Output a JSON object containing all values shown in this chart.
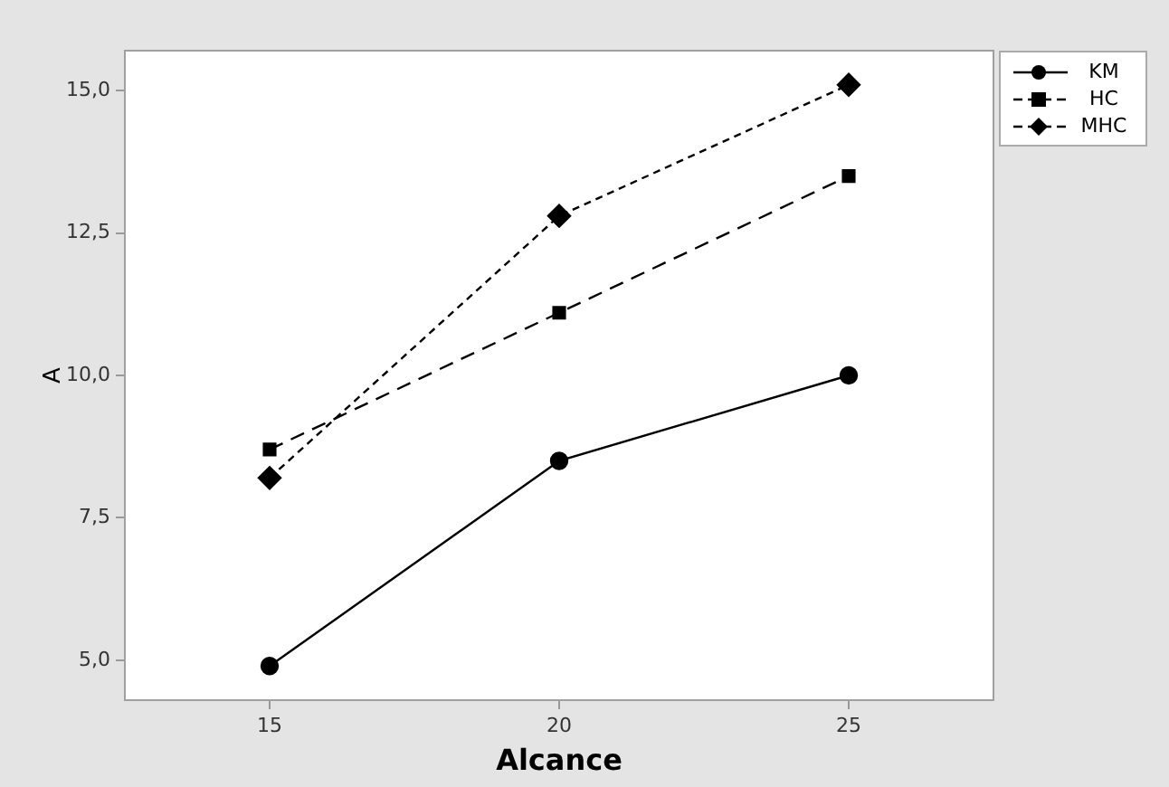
{
  "chart_data": {
    "type": "line",
    "xlabel": "Alcance",
    "ylabel": "A",
    "x": [
      15,
      20,
      25
    ],
    "xlim": [
      12.5,
      27.5
    ],
    "xticks": [
      15,
      20,
      25
    ],
    "ylim": [
      4.3,
      15.7
    ],
    "yticks": [
      {
        "value": 5,
        "label": "5,0"
      },
      {
        "value": 7.5,
        "label": "7,5"
      },
      {
        "value": 10,
        "label": "10,0"
      },
      {
        "value": 12.5,
        "label": "12,5"
      },
      {
        "value": 15,
        "label": "15,0"
      }
    ],
    "grid": false,
    "legend": "top right",
    "series": [
      {
        "name": "KM",
        "color": "#000000",
        "values": [
          4.9,
          8.5,
          10.0
        ],
        "marker": "circle",
        "line_style": "solid"
      },
      {
        "name": "HC",
        "color": "#000000",
        "values": [
          8.7,
          11.1,
          13.5
        ],
        "marker": "square",
        "line_style": "dashed"
      },
      {
        "name": "MHC",
        "color": "#000000",
        "values": [
          8.2,
          12.8,
          15.1
        ],
        "marker": "diamond",
        "line_style": "dotted"
      }
    ]
  }
}
